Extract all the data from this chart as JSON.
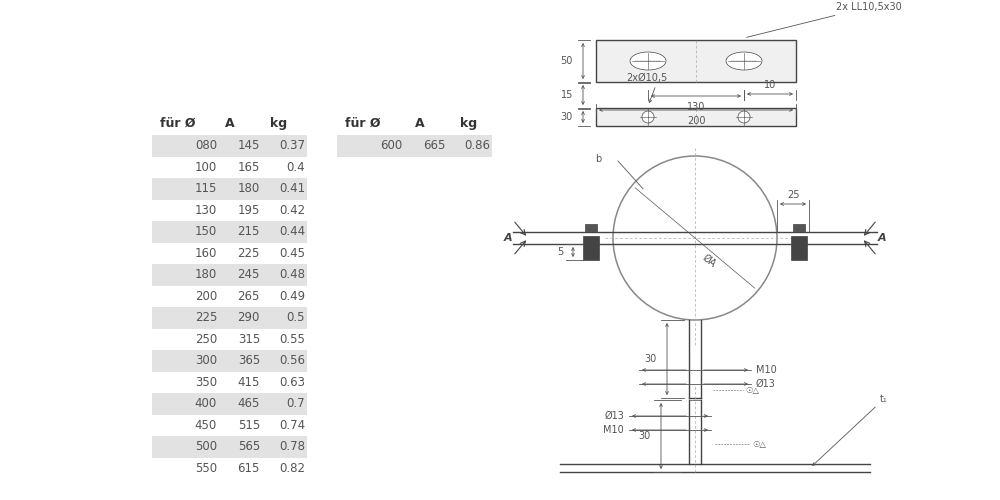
{
  "bg_color": "#ffffff",
  "table_header": [
    "für Ø",
    "A",
    "kg"
  ],
  "table_data": [
    [
      "080",
      "145",
      "0.37"
    ],
    [
      "100",
      "165",
      "0.4"
    ],
    [
      "115",
      "180",
      "0.41"
    ],
    [
      "130",
      "195",
      "0.42"
    ],
    [
      "150",
      "215",
      "0.44"
    ],
    [
      "160",
      "225",
      "0.45"
    ],
    [
      "180",
      "245",
      "0.48"
    ],
    [
      "200",
      "265",
      "0.49"
    ],
    [
      "225",
      "290",
      "0.5"
    ],
    [
      "250",
      "315",
      "0.55"
    ],
    [
      "300",
      "365",
      "0.56"
    ],
    [
      "350",
      "415",
      "0.63"
    ],
    [
      "400",
      "465",
      "0.7"
    ],
    [
      "450",
      "515",
      "0.74"
    ],
    [
      "500",
      "565",
      "0.78"
    ],
    [
      "550",
      "615",
      "0.82"
    ]
  ],
  "table_data2": [
    [
      "600",
      "665",
      "0.86"
    ]
  ],
  "shaded_rows": [
    0,
    2,
    4,
    6,
    8,
    10,
    12,
    14
  ],
  "shade_color": "#e2e2e2",
  "text_color": "#555555",
  "line_color": "#333333",
  "dim_color": "#555555",
  "mc_color": "#444444",
  "font_size_header": 9,
  "font_size_data": 8.5,
  "font_size_dim": 7
}
